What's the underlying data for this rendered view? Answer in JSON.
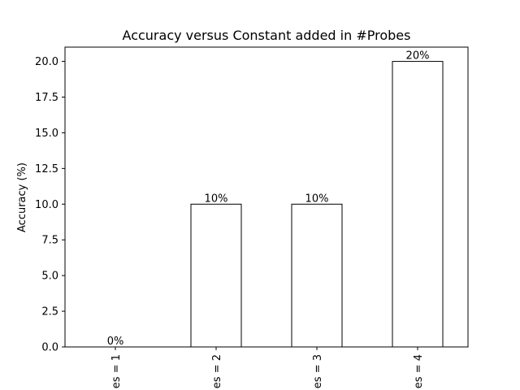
{
  "chart_data": {
    "type": "bar",
    "title": "Accuracy versus Constant added in #Probes",
    "xlabel": "",
    "ylabel": "Accuracy (%)",
    "categories": [
      "es = 1",
      "es = 2",
      "es = 3",
      "es = 4"
    ],
    "values": [
      0,
      10,
      10,
      20
    ],
    "data_labels": [
      "0%",
      "10%",
      "10%",
      "20%"
    ],
    "ylim": [
      0,
      21
    ],
    "yticks": [
      0.0,
      2.5,
      5.0,
      7.5,
      10.0,
      12.5,
      15.0,
      17.5,
      20.0
    ],
    "ytick_labels": [
      "0.0",
      "2.5",
      "5.0",
      "7.5",
      "10.0",
      "12.5",
      "15.0",
      "17.5",
      "20.0"
    ],
    "grid": false,
    "bar_fill": "#ffffff",
    "bar_edge": "#000000"
  }
}
